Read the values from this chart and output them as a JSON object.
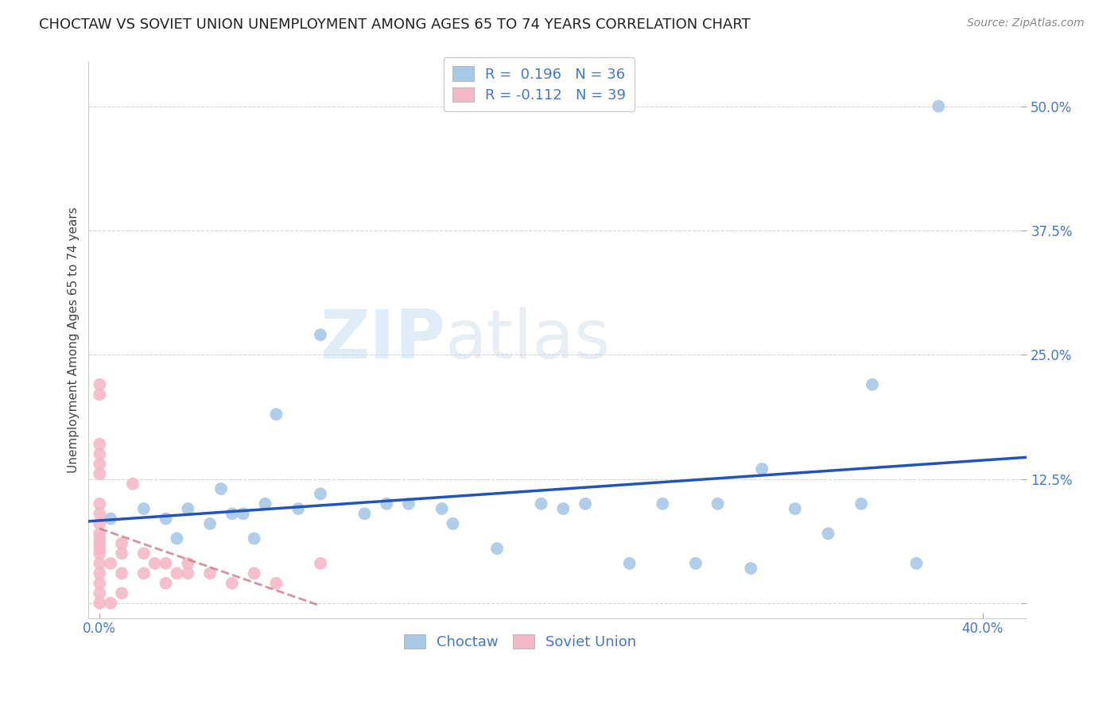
{
  "title": "CHOCTAW VS SOVIET UNION UNEMPLOYMENT AMONG AGES 65 TO 74 YEARS CORRELATION CHART",
  "source": "Source: ZipAtlas.com",
  "ylabel": "Unemployment Among Ages 65 to 74 years",
  "xlim": [
    -0.005,
    0.42
  ],
  "ylim": [
    -0.015,
    0.545
  ],
  "x_ticks": [
    0.0,
    0.4
  ],
  "x_tick_labels": [
    "0.0%",
    "40.0%"
  ],
  "y_ticks": [
    0.0,
    0.125,
    0.25,
    0.375,
    0.5
  ],
  "y_tick_labels": [
    "",
    "12.5%",
    "25.0%",
    "37.5%",
    "50.0%"
  ],
  "choctaw_R": 0.196,
  "choctaw_N": 36,
  "soviet_R": -0.112,
  "soviet_N": 39,
  "choctaw_color": "#a8c8e8",
  "soviet_color": "#f4b8c8",
  "trend_choctaw_color": "#2255bb",
  "trend_soviet_color": "#cc7788",
  "background_color": "#ffffff",
  "grid_color": "#cccccc",
  "choctaw_x": [
    0.005,
    0.02,
    0.03,
    0.035,
    0.04,
    0.05,
    0.055,
    0.06,
    0.065,
    0.07,
    0.075,
    0.08,
    0.09,
    0.1,
    0.1,
    0.12,
    0.13,
    0.14,
    0.155,
    0.16,
    0.18,
    0.2,
    0.21,
    0.22,
    0.24,
    0.255,
    0.27,
    0.28,
    0.295,
    0.3,
    0.315,
    0.33,
    0.345,
    0.35,
    0.37,
    0.38
  ],
  "choctaw_y": [
    0.085,
    0.095,
    0.085,
    0.065,
    0.095,
    0.08,
    0.115,
    0.09,
    0.09,
    0.065,
    0.1,
    0.19,
    0.095,
    0.11,
    0.27,
    0.09,
    0.1,
    0.1,
    0.095,
    0.08,
    0.055,
    0.1,
    0.095,
    0.1,
    0.04,
    0.1,
    0.04,
    0.1,
    0.035,
    0.135,
    0.095,
    0.07,
    0.1,
    0.22,
    0.04,
    0.5
  ],
  "soviet_x": [
    0.0,
    0.0,
    0.0,
    0.0,
    0.0,
    0.0,
    0.0,
    0.0,
    0.0,
    0.0,
    0.0,
    0.0,
    0.0,
    0.0,
    0.0,
    0.0,
    0.0,
    0.0,
    0.0,
    0.005,
    0.005,
    0.01,
    0.01,
    0.01,
    0.01,
    0.015,
    0.02,
    0.02,
    0.025,
    0.03,
    0.03,
    0.035,
    0.04,
    0.04,
    0.05,
    0.06,
    0.07,
    0.08,
    0.1
  ],
  "soviet_y": [
    0.0,
    0.01,
    0.02,
    0.03,
    0.04,
    0.05,
    0.055,
    0.06,
    0.065,
    0.07,
    0.08,
    0.09,
    0.1,
    0.13,
    0.14,
    0.15,
    0.16,
    0.21,
    0.22,
    0.0,
    0.04,
    0.01,
    0.03,
    0.05,
    0.06,
    0.12,
    0.03,
    0.05,
    0.04,
    0.02,
    0.04,
    0.03,
    0.03,
    0.04,
    0.03,
    0.02,
    0.03,
    0.02,
    0.04
  ],
  "watermark_part1": "ZIP",
  "watermark_part2": "atlas",
  "title_fontsize": 13,
  "label_fontsize": 11,
  "tick_fontsize": 12,
  "legend_fontsize": 13
}
